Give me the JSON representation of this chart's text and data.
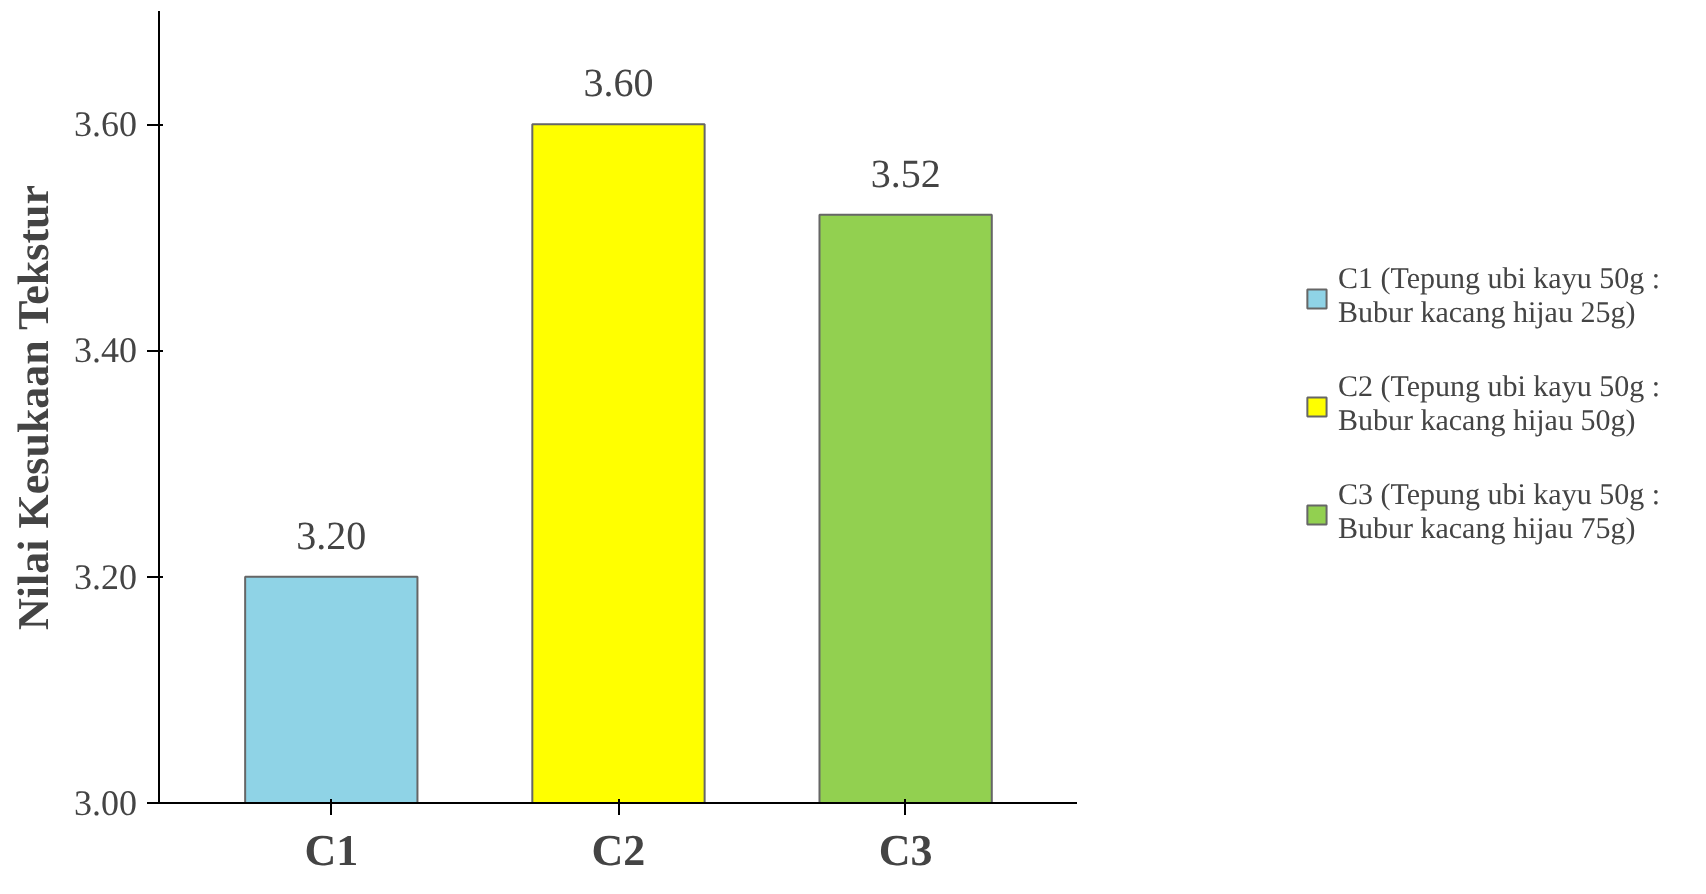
{
  "chart_data": {
    "type": "bar",
    "ylabel": "Nilai Kesukaan Tekstur",
    "categories": [
      "C1",
      "C2",
      "C3"
    ],
    "series": [
      {
        "name": "C1 (Tepung ubi kayu 50g : Bubur kacang hijau 25g)",
        "color": "#8fd3e6",
        "values": [
          3.2,
          null,
          null
        ],
        "value_labels": [
          "3.20",
          null,
          null
        ]
      },
      {
        "name": "C2 (Tepung ubi kayu 50g : Bubur kacang hijau 50g)",
        "color": "#ffff00",
        "values": [
          null,
          3.6,
          null
        ],
        "value_labels": [
          null,
          "3.60",
          null
        ]
      },
      {
        "name": "C3 (Tepung ubi kayu 50g : Bubur kacang hijau 75g)",
        "color": "#92d050",
        "values": [
          null,
          null,
          3.52
        ],
        "value_labels": [
          null,
          null,
          "3.52"
        ]
      }
    ],
    "ylim": [
      3.0,
      3.7
    ],
    "yticks": [
      {
        "value": 3.0,
        "label": "3.00"
      },
      {
        "value": 3.2,
        "label": "3.20"
      },
      {
        "value": 3.4,
        "label": "3.40"
      },
      {
        "value": 3.6,
        "label": "3.60"
      }
    ],
    "data_labels": true,
    "grid": false,
    "legend": "right"
  }
}
